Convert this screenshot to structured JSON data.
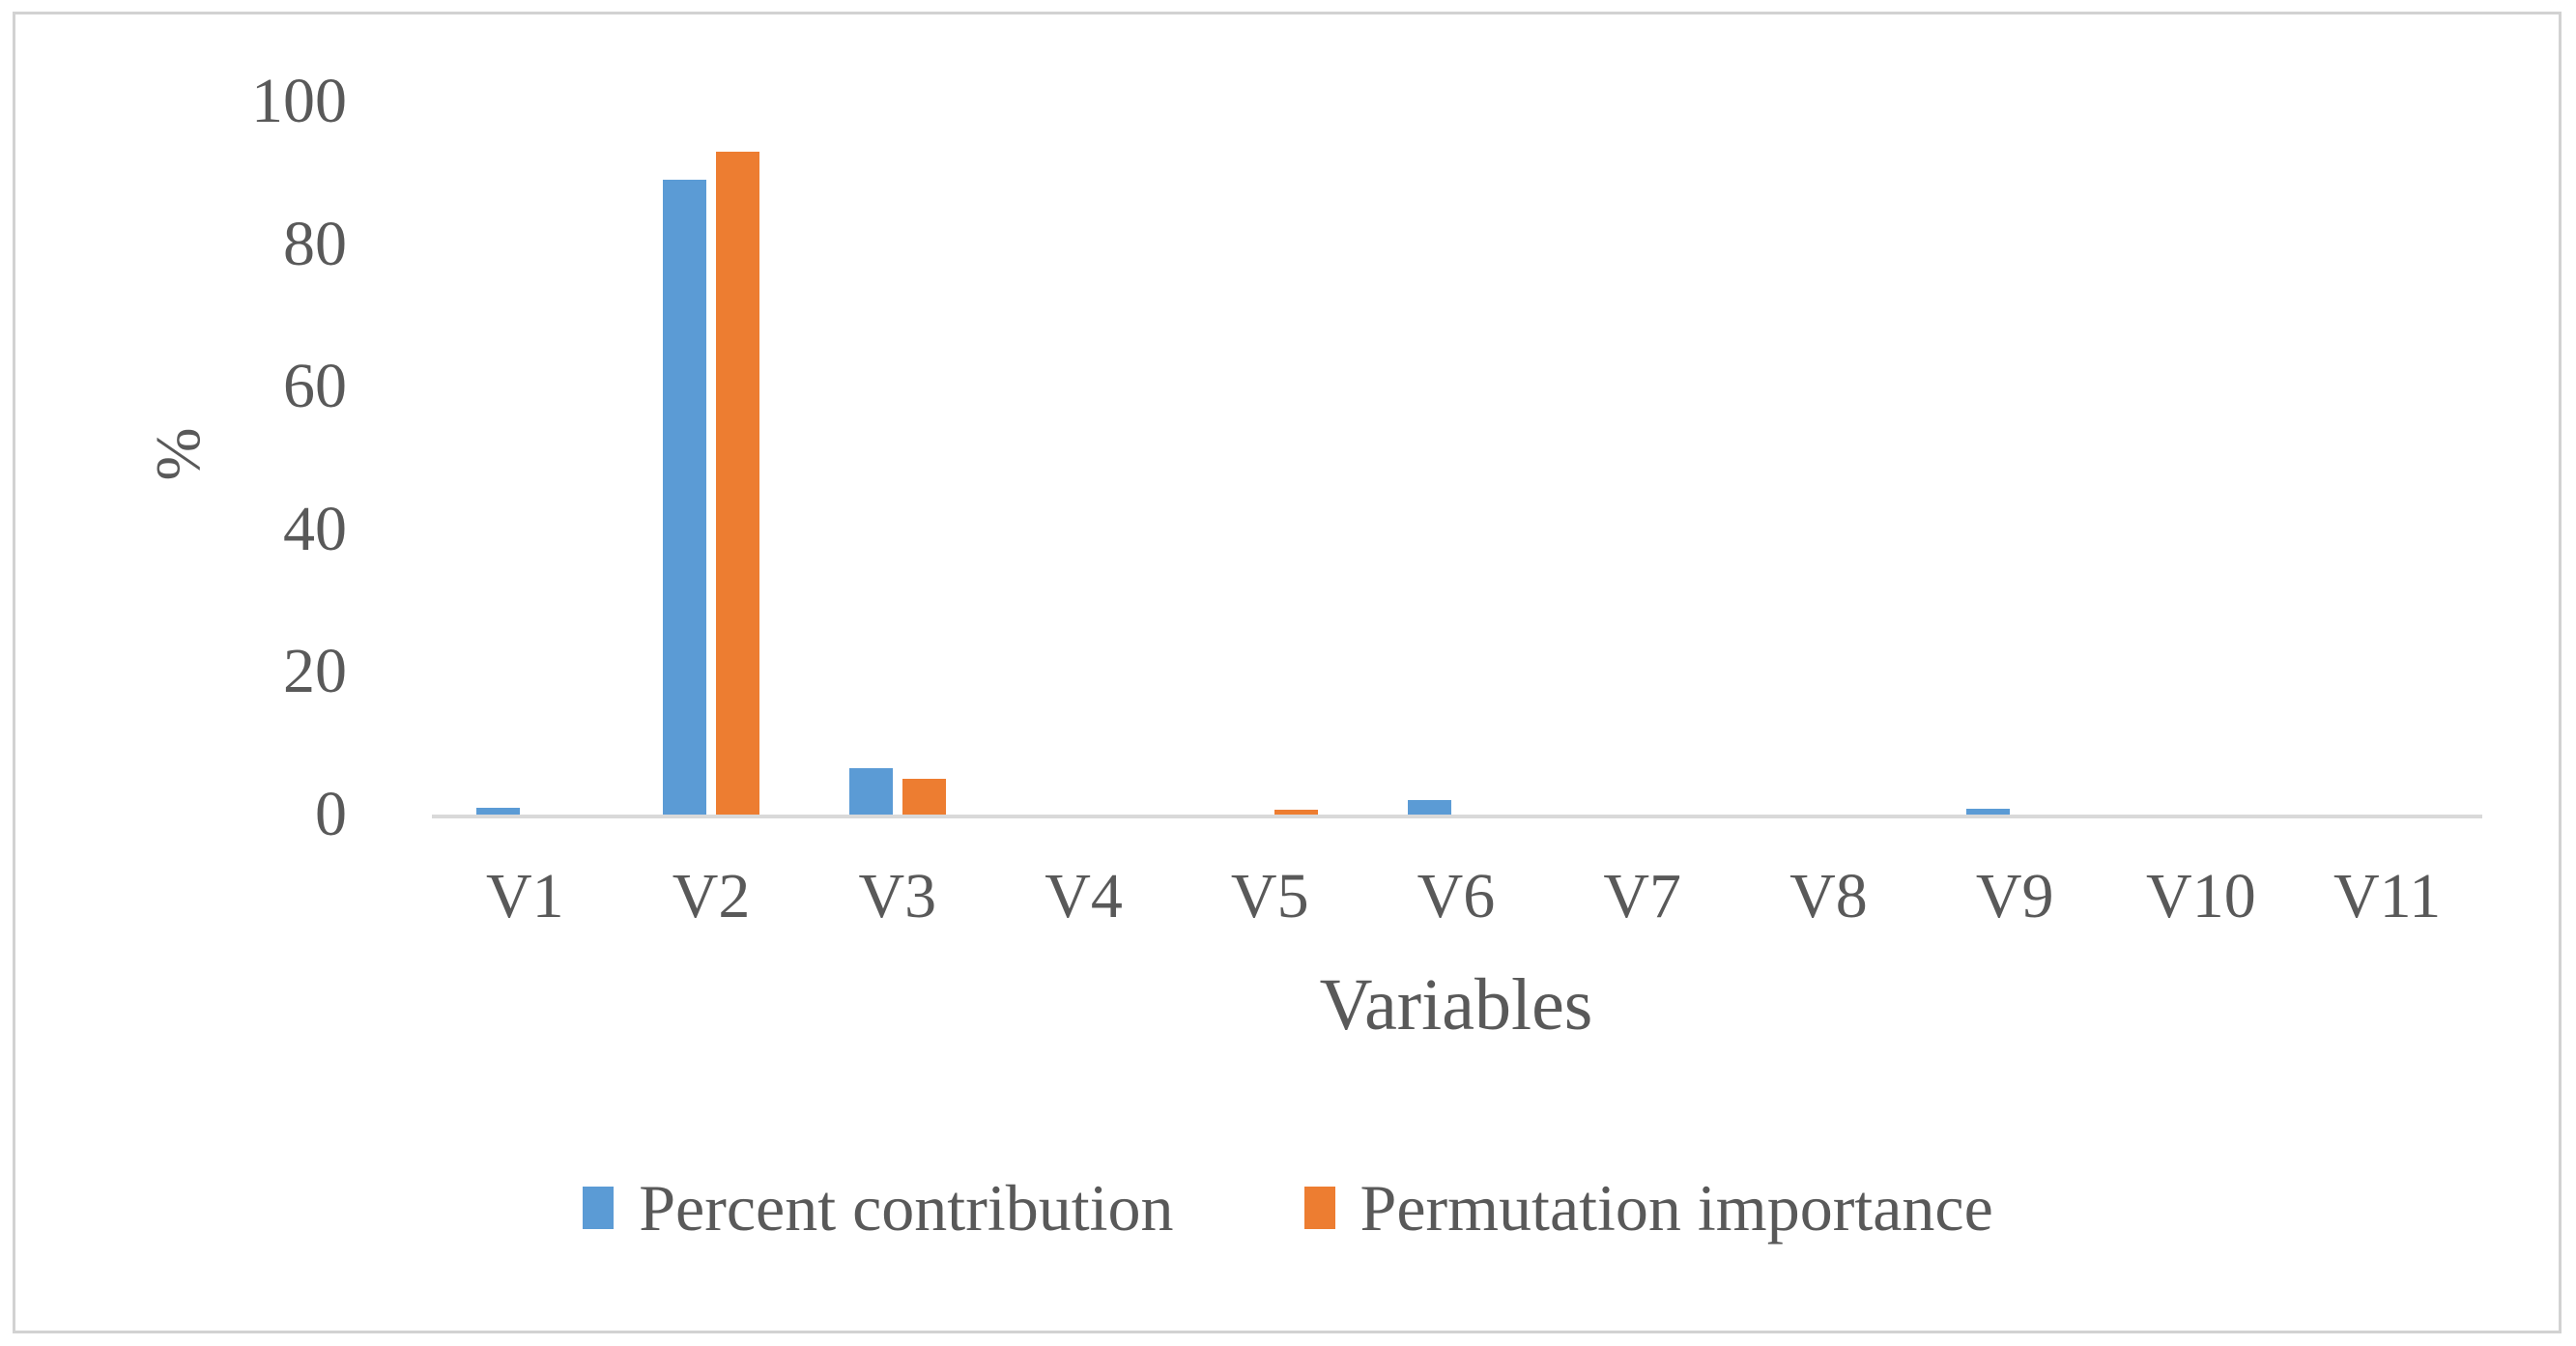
{
  "figure": {
    "background_color": "#ffffff",
    "frame_border_color": "#d2d2d2"
  },
  "chart_data": {
    "type": "bar",
    "title": "",
    "xlabel": "Variables",
    "ylabel": "%",
    "categories": [
      "V1",
      "V2",
      "V3",
      "V4",
      "V5",
      "V6",
      "V7",
      "V8",
      "V9",
      "V10",
      "V11"
    ],
    "series": [
      {
        "name": "Percent contribution",
        "color": "#5B9BD5",
        "values": [
          1,
          89,
          6.5,
          0,
          0,
          2,
          0,
          0,
          0.8,
          0,
          0
        ]
      },
      {
        "name": "Permutation importance",
        "color": "#ED7D31",
        "values": [
          0,
          93,
          5,
          0,
          0.7,
          0,
          0,
          0,
          0,
          0,
          0
        ]
      }
    ],
    "ylim": [
      0,
      100
    ],
    "yticks": [
      0,
      20,
      40,
      60,
      80,
      100
    ],
    "grid": false,
    "legend_position": "bottom",
    "axis_line_color": "#d9d9d9",
    "text_color": "#595959"
  }
}
